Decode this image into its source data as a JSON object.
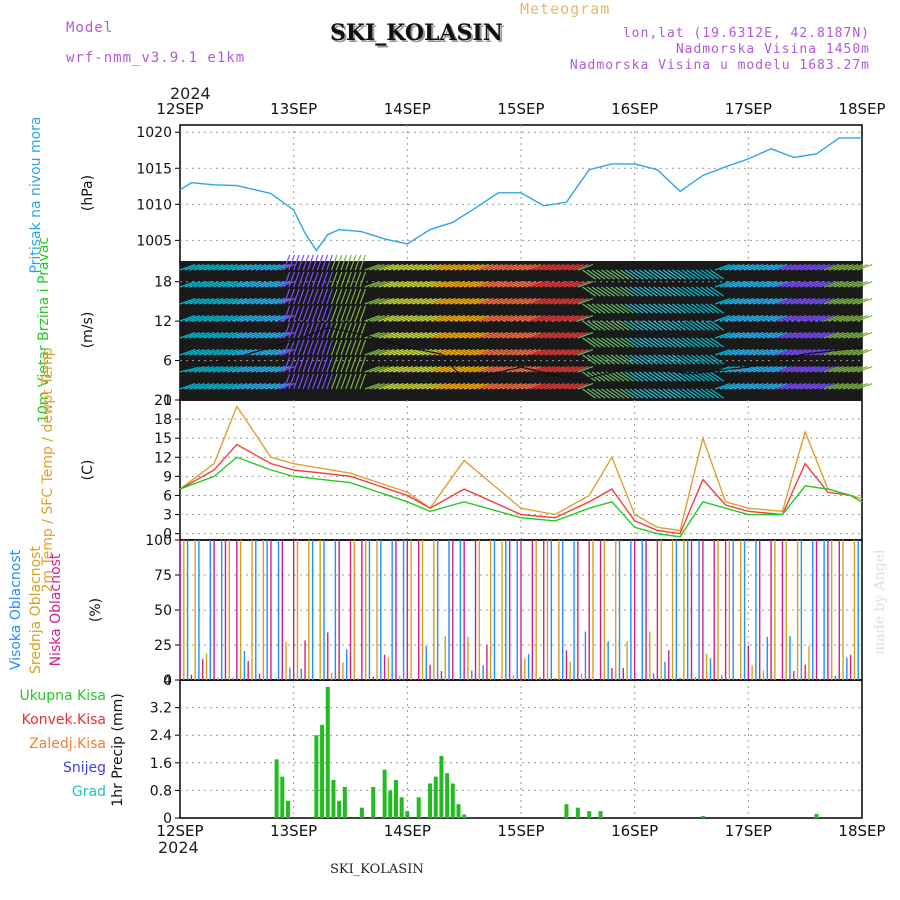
{
  "header": {
    "model_label": "Model",
    "model_name": "wrf-nmm_v3.9.1  e1km",
    "title": "SKI_KOLASIN",
    "meteogram_label": "Meteogram",
    "coords": "lon,lat (19.6312E, 42.8187N)",
    "elevation": "Nadmorska Visina 1450m",
    "elevation_model": "Nadmorska Visina u modelu 1683.27m",
    "year": "2024"
  },
  "footer": {
    "station": "SKI_KOLASIN",
    "year": "2024",
    "credit": "made by Angel"
  },
  "colors": {
    "pressure": "#2aa4e8",
    "temp2m": "#f04040",
    "sfc": "#e0a030",
    "dewpt": "#22cc22",
    "low_cloud": "#cc2288",
    "mid_cloud": "#d8a020",
    "high_cloud": "#1e90ff",
    "precip": "#22bb22",
    "conv": "#e83030",
    "grid": "#999999"
  },
  "time_axis": {
    "labels": [
      "12SEP",
      "13SEP",
      "14SEP",
      "15SEP",
      "16SEP",
      "17SEP",
      "18SEP"
    ]
  },
  "chart_data": [
    {
      "type": "line",
      "panel": "pressure",
      "side_label": "Pritisak na nivou mora",
      "unit": "(hPa)",
      "ylim": [
        1002,
        1021
      ],
      "yticks": [
        1005,
        1010,
        1015,
        1020
      ],
      "x": [
        0,
        0.1,
        0.3,
        0.5,
        0.8,
        1.0,
        1.1,
        1.2,
        1.3,
        1.4,
        1.6,
        1.8,
        2.0,
        2.2,
        2.4,
        2.6,
        2.8,
        3.0,
        3.2,
        3.4,
        3.6,
        3.8,
        4.0,
        4.2,
        4.4,
        4.6,
        4.8,
        5.0,
        5.2,
        5.4,
        5.6,
        5.8,
        6.0
      ],
      "series": [
        {
          "values": [
            1012,
            1013,
            1012.7,
            1012.6,
            1011.5,
            1009.2,
            1006.0,
            1003.6,
            1005.8,
            1006.5,
            1006.2,
            1005.2,
            1004.5,
            1006.5,
            1007.5,
            1009.5,
            1011.6,
            1011.6,
            1009.8,
            1010.3,
            1014.8,
            1015.6,
            1015.6,
            1014.8,
            1011.8,
            1014.0,
            1015.2,
            1016.3,
            1017.7,
            1016.5,
            1017.0,
            1019.2,
            1019.2
          ]
        }
      ]
    },
    {
      "type": "line",
      "panel": "wind",
      "side_label": "10m Vjetar Brzina i Pravac",
      "unit": "(m/s)",
      "ylim": [
        0,
        21
      ],
      "yticks": [
        0,
        6,
        12,
        18
      ],
      "x": [
        0,
        0.5,
        1.0,
        1.3,
        1.6,
        2.0,
        2.3,
        2.5,
        3.0,
        3.5,
        4.0,
        4.5,
        5.0,
        5.5,
        6.0
      ],
      "series": [
        {
          "values": [
            4.5,
            6.5,
            9,
            11,
            10,
            8,
            7,
            3,
            5,
            3,
            5,
            4,
            5,
            7,
            8
          ]
        }
      ]
    },
    {
      "type": "line",
      "panel": "temperature",
      "side_label": "2m Temp / SFC Temp / dewpt Temp",
      "unit": "(C)",
      "ylim": [
        -1,
        21
      ],
      "yticks": [
        0,
        3,
        6,
        9,
        12,
        15,
        18,
        21
      ],
      "x": [
        0,
        0.3,
        0.5,
        0.8,
        1.0,
        1.5,
        2.0,
        2.2,
        2.5,
        3.0,
        3.3,
        3.6,
        3.8,
        4.0,
        4.2,
        4.4,
        4.6,
        4.8,
        5.0,
        5.3,
        5.5,
        5.7,
        5.9,
        6.0
      ],
      "series": [
        {
          "name": "SFC Temp",
          "values": [
            7,
            11,
            20,
            12,
            11,
            9.5,
            6.5,
            4,
            11.5,
            4,
            3,
            6,
            12,
            3,
            1,
            0.5,
            15,
            5,
            4,
            3.5,
            16,
            7,
            6,
            5.5
          ]
        },
        {
          "name": "2m Temp",
          "values": [
            7,
            10,
            14,
            11,
            10,
            9,
            6,
            4,
            7,
            3,
            2.5,
            5,
            7,
            2,
            0.5,
            0,
            8.5,
            4.5,
            3.5,
            3,
            11,
            6.5,
            6,
            5
          ]
        },
        {
          "name": "dewpt Temp",
          "values": [
            7,
            9,
            12,
            10,
            9,
            8,
            5,
            3.5,
            5,
            2.5,
            2,
            4,
            5,
            1,
            0,
            -0.5,
            5,
            4,
            3,
            3,
            7.5,
            7,
            6,
            5
          ]
        }
      ]
    },
    {
      "type": "bar",
      "panel": "cloud",
      "side_labels": [
        "Visoka Oblacnost",
        "Srednja Oblacnost",
        "Niska Oblacnost"
      ],
      "unit": "(%)",
      "ylim": [
        0,
        100
      ],
      "yticks": [
        0,
        25,
        50,
        75,
        100
      ]
    },
    {
      "type": "bar",
      "panel": "precip",
      "side_labels": [
        "Ukupna Kisa",
        "Konvek.Kisa",
        "Zaledj.Kisa",
        "Snijeg",
        "Grad"
      ],
      "unit": "1hr Precip (mm)",
      "ylim": [
        0,
        4
      ],
      "yticks": [
        0,
        0.8,
        1.6,
        2.4,
        3.2,
        4
      ],
      "x": [
        0.85,
        0.9,
        0.95,
        1.2,
        1.25,
        1.3,
        1.35,
        1.4,
        1.45,
        1.6,
        1.7,
        1.8,
        1.85,
        1.9,
        1.95,
        2.0,
        2.1,
        2.2,
        2.25,
        2.3,
        2.35,
        2.4,
        2.45,
        2.5,
        3.4,
        3.5,
        3.6,
        3.7,
        4.6,
        5.6
      ],
      "series": [
        {
          "name": "Ukupna Kisa",
          "values": [
            1.7,
            1.2,
            0.5,
            2.4,
            2.7,
            3.8,
            1.1,
            0.5,
            0.9,
            0.3,
            0.9,
            1.4,
            0.8,
            1.1,
            0.6,
            0.2,
            0.6,
            1.0,
            1.2,
            1.8,
            1.3,
            1.0,
            0.4,
            0.1,
            0.4,
            0.3,
            0.2,
            0.2,
            0.06,
            0.12
          ]
        }
      ]
    }
  ]
}
